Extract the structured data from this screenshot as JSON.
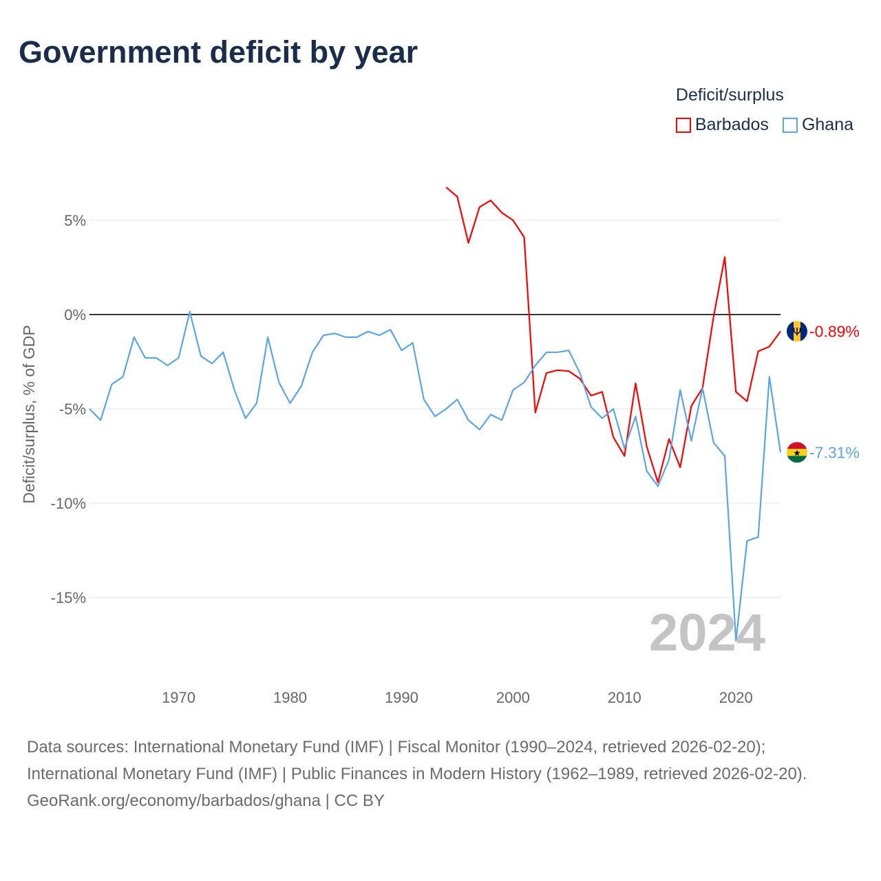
{
  "title": "Government deficit by year",
  "legend": {
    "title": "Deficit/surplus",
    "items": [
      {
        "name": "Barbados",
        "color": "#ff0000"
      },
      {
        "name": "Ghana",
        "color": "#5aa5e8"
      }
    ]
  },
  "footer": {
    "sources": "Data sources: International Monetary Fund (IMF) | Fiscal Monitor (1990–2024, retrieved 2026-02-20); International Monetary Fund (IMF) | Public Finances in Modern History (1962–1989, retrieved 2026-02-20).",
    "credit": "GeoRank.org/economy/barbados/ghana | CC BY"
  },
  "chart_data": {
    "type": "line",
    "title": "Government deficit by year",
    "xlabel": "",
    "ylabel": "Deficit/surplus, % of GDP",
    "xlim": [
      1962,
      2024
    ],
    "ylim": [
      -19,
      9
    ],
    "xticks": [
      1970,
      1980,
      1990,
      2000,
      2010,
      2020
    ],
    "yticks": [
      5,
      0,
      -5,
      -10,
      -15
    ],
    "ytick_labels": [
      "5%",
      "0%",
      "-5%",
      "-10%",
      "-15%"
    ],
    "year_watermark": "2024",
    "series": [
      {
        "name": "Barbados",
        "color": "#ff0000",
        "end_label": "-0.89%",
        "flag": "barbados",
        "x": [
          1994,
          1995,
          1996,
          1997,
          1998,
          1999,
          2000,
          2001,
          2002,
          2003,
          2004,
          2005,
          2006,
          2007,
          2008,
          2009,
          2010,
          2011,
          2012,
          2013,
          2014,
          2015,
          2016,
          2017,
          2018,
          2019,
          2020,
          2021,
          2022,
          2023,
          2024
        ],
        "y": [
          6.75,
          6.25,
          3.8,
          5.7,
          6.05,
          5.4,
          5.0,
          4.1,
          -5.2,
          -3.1,
          -2.95,
          -3.0,
          -3.4,
          -4.3,
          -4.1,
          -6.5,
          -7.5,
          -3.65,
          -7.0,
          -8.9,
          -6.6,
          -8.1,
          -4.85,
          -3.9,
          -0.1,
          3.05,
          -4.1,
          -4.6,
          -1.95,
          -1.7,
          -0.89
        ]
      },
      {
        "name": "Ghana",
        "color": "#5aa5e8",
        "end_label": "-7.31%",
        "flag": "ghana",
        "x": [
          1962,
          1963,
          1964,
          1965,
          1966,
          1967,
          1968,
          1969,
          1970,
          1971,
          1972,
          1973,
          1974,
          1975,
          1976,
          1977,
          1978,
          1979,
          1980,
          1981,
          1982,
          1983,
          1984,
          1985,
          1986,
          1987,
          1988,
          1989,
          1990,
          1991,
          1992,
          1993,
          1994,
          1995,
          1996,
          1997,
          1998,
          1999,
          2000,
          2001,
          2002,
          2003,
          2004,
          2005,
          2006,
          2007,
          2008,
          2009,
          2010,
          2011,
          2012,
          2013,
          2014,
          2015,
          2016,
          2017,
          2018,
          2019,
          2020,
          2021,
          2022,
          2023,
          2024
        ],
        "y": [
          -5.0,
          -5.6,
          -3.7,
          -3.3,
          -1.2,
          -2.3,
          -2.3,
          -2.7,
          -2.3,
          0.15,
          -2.2,
          -2.6,
          -2.0,
          -4.0,
          -5.5,
          -4.7,
          -1.2,
          -3.6,
          -4.7,
          -3.8,
          -2.0,
          -1.1,
          -1.0,
          -1.2,
          -1.2,
          -0.9,
          -1.1,
          -0.8,
          -1.9,
          -1.5,
          -4.5,
          -5.4,
          -5.0,
          -4.5,
          -5.6,
          -6.1,
          -5.3,
          -5.6,
          -4.0,
          -3.6,
          -2.7,
          -2.0,
          -2.0,
          -1.9,
          -3.1,
          -4.9,
          -5.5,
          -5.0,
          -7.1,
          -5.4,
          -8.3,
          -9.1,
          -7.7,
          -4.0,
          -6.7,
          -3.9,
          -6.8,
          -7.5,
          -17.3,
          -12.0,
          -11.8,
          -3.3,
          -7.31
        ]
      }
    ]
  }
}
